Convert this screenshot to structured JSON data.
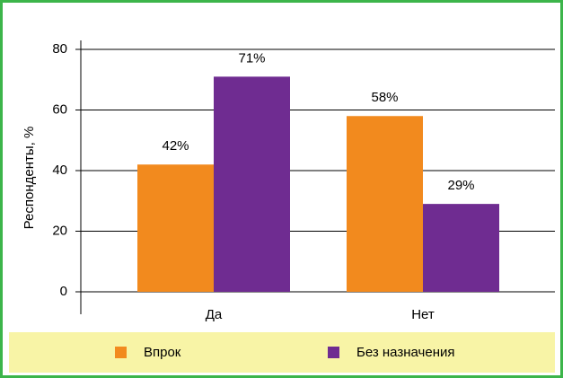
{
  "chart_data": {
    "type": "bar",
    "categories": [
      "Да",
      "Нет"
    ],
    "series": [
      {
        "name": "Впрок",
        "color": "#f28a1e",
        "values": [
          42,
          58
        ],
        "value_labels": [
          "42%",
          "58%"
        ]
      },
      {
        "name": "Без назначения",
        "color": "#6f2c91",
        "values": [
          71,
          29
        ],
        "value_labels": [
          "71%",
          "29%"
        ]
      }
    ],
    "y_label": "Респонденты, %",
    "ylim": [
      0,
      80
    ],
    "yticks": [
      0,
      20,
      40,
      60,
      80
    ],
    "grid": true,
    "legend": "bottom"
  }
}
